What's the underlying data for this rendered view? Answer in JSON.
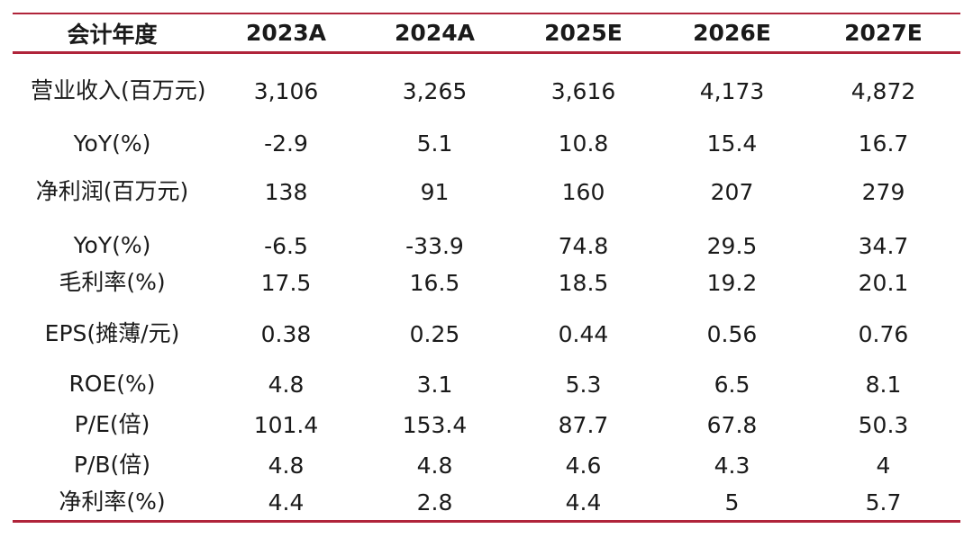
{
  "table": {
    "header": [
      "会计年度",
      "2023A",
      "2024A",
      "2025E",
      "2026E",
      "2027E"
    ],
    "rows": [
      {
        "label": "营业收入(百万元)",
        "values": [
          "3,106",
          "3,265",
          "3,616",
          "4,173",
          "4,872"
        ]
      },
      {
        "label": "YoY(%)",
        "values": [
          "-2.9",
          "5.1",
          "10.8",
          "15.4",
          "16.7"
        ]
      },
      {
        "label": "净利润(百万元)",
        "values": [
          "138",
          "91",
          "160",
          "207",
          "279"
        ]
      },
      {
        "label": "YoY(%)",
        "values": [
          "-6.5",
          "-33.9",
          "74.8",
          "29.5",
          "34.7"
        ]
      },
      {
        "label": "毛利率(%)",
        "values": [
          "17.5",
          "16.5",
          "18.5",
          "19.2",
          "20.1"
        ]
      },
      {
        "label": "EPS(摊薄/元)",
        "values": [
          "0.38",
          "0.25",
          "0.44",
          "0.56",
          "0.76"
        ]
      },
      {
        "label": "ROE(%)",
        "values": [
          "4.8",
          "3.1",
          "5.3",
          "6.5",
          "8.1"
        ]
      },
      {
        "label": "P/E(倍)",
        "values": [
          "101.4",
          "153.4",
          "87.7",
          "67.8",
          "50.3"
        ]
      },
      {
        "label": "P/B(倍)",
        "values": [
          "4.8",
          "4.8",
          "4.6",
          "4.3",
          "4"
        ]
      },
      {
        "label": "净利率(%)",
        "values": [
          "4.4",
          "2.8",
          "4.4",
          "5",
          "5.7"
        ]
      }
    ]
  },
  "colors": {
    "rule": "#b0243a",
    "text": "#1a1a1a"
  }
}
